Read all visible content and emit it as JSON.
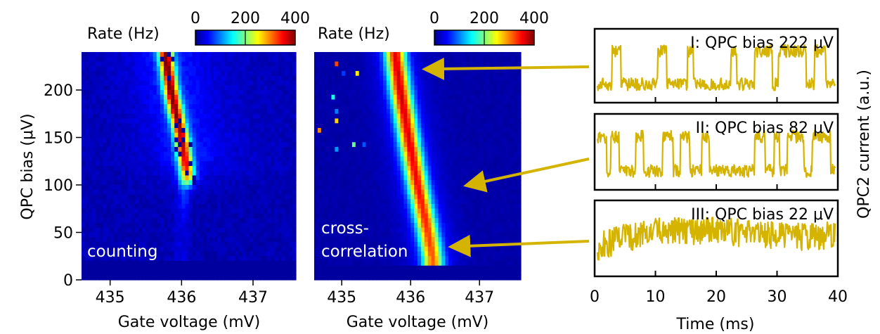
{
  "chart_data": [
    {
      "type": "heatmap",
      "panel_label": "counting",
      "xlabel": "Gate voltage (mV)",
      "ylabel": "QPC bias (μV)",
      "xlim": [
        434.6,
        437.6
      ],
      "ylim": [
        0,
        240
      ],
      "x_ticks": [
        "435",
        "436",
        "437"
      ],
      "y_ticks": [
        "0",
        "50",
        "100",
        "150",
        "200"
      ],
      "colorbar": {
        "label": "Rate (Hz)",
        "range": [
          0,
          400
        ],
        "ticks": [
          "0",
          "200",
          "400"
        ],
        "colormap": "jet"
      },
      "ridge": [
        {
          "bias": 235,
          "gate": 435.78,
          "peak_rate": 360
        },
        {
          "bias": 200,
          "gate": 435.85,
          "peak_rate": 360
        },
        {
          "bias": 150,
          "gate": 436.0,
          "peak_rate": 330
        },
        {
          "bias": 110,
          "gate": 436.08,
          "peak_rate": 300
        },
        {
          "bias": 95,
          "gate": 436.05,
          "peak_rate": 60
        },
        {
          "bias": 60,
          "gate": 436.0,
          "peak_rate": 20
        }
      ]
    },
    {
      "type": "heatmap",
      "panel_label": "cross-\ncorrelation",
      "xlabel": "Gate voltage (mV)",
      "xlim": [
        434.6,
        437.6
      ],
      "ylim": [
        0,
        240
      ],
      "x_ticks": [
        "435",
        "436",
        "437"
      ],
      "colorbar": {
        "label": "Rate (Hz)",
        "range": [
          0,
          400
        ],
        "ticks": [
          "0",
          "200",
          "400"
        ],
        "colormap": "jet"
      },
      "ridge": [
        {
          "bias": 235,
          "gate": 435.78,
          "peak_rate": 330
        },
        {
          "bias": 200,
          "gate": 435.85,
          "peak_rate": 340
        },
        {
          "bias": 150,
          "gate": 435.97,
          "peak_rate": 330
        },
        {
          "bias": 100,
          "gate": 436.1,
          "peak_rate": 320
        },
        {
          "bias": 50,
          "gate": 436.25,
          "peak_rate": 300
        },
        {
          "bias": 22,
          "gate": 436.32,
          "peak_rate": 280
        }
      ],
      "annotations": [
        {
          "bias": 222,
          "gate": 436.1,
          "trace": "I"
        },
        {
          "bias": 100,
          "gate": 436.7,
          "trace": "II"
        },
        {
          "bias": 35,
          "gate": 436.48,
          "trace": "III"
        }
      ]
    },
    {
      "type": "line",
      "xlabel": "Time (ms)",
      "ylabel": "QPC2 current (a.u.)",
      "xlim": [
        0,
        40
      ],
      "x_ticks": [
        "0",
        "10",
        "20",
        "30",
        "40"
      ],
      "line_color": "#D4B400",
      "arrow_color": "#D4B400",
      "traces": [
        {
          "label": "I: QPC bias 222 μV",
          "segments": [
            [
              0,
              0
            ],
            [
              2.5,
              1
            ],
            [
              4,
              0
            ],
            [
              10.2,
              1
            ],
            [
              11.7,
              0
            ],
            [
              15.2,
              1
            ],
            [
              16.2,
              0
            ],
            [
              22.5,
              1
            ],
            [
              23.5,
              0
            ],
            [
              26.5,
              1
            ],
            [
              29.5,
              0
            ],
            [
              30.5,
              1
            ],
            [
              35.2,
              0
            ],
            [
              36.6,
              1
            ],
            [
              38.5,
              0
            ]
          ]
        },
        {
          "label": "II: QPC bias 82 μV",
          "segments": [
            [
              0,
              1
            ],
            [
              1.6,
              0
            ],
            [
              2.3,
              1
            ],
            [
              3.6,
              0
            ],
            [
              6.5,
              1
            ],
            [
              7.8,
              0
            ],
            [
              11,
              1
            ],
            [
              12.8,
              0
            ],
            [
              14,
              1
            ],
            [
              15.6,
              0
            ],
            [
              17.6,
              1
            ],
            [
              18.8,
              0
            ],
            [
              26.5,
              1
            ],
            [
              28.3,
              0
            ],
            [
              29.8,
              1
            ],
            [
              30.7,
              0
            ],
            [
              32,
              1
            ],
            [
              34.8,
              0
            ],
            [
              36.2,
              1
            ],
            [
              39.3,
              0
            ]
          ]
        },
        {
          "label": "III: QPC bias 22 μV",
          "segments": [
            [
              0,
              0.3
            ],
            [
              4,
              0.55
            ],
            [
              10,
              0.75
            ],
            [
              18,
              0.8
            ],
            [
              25,
              0.7
            ],
            [
              30,
              0.65
            ],
            [
              35,
              0.6
            ],
            [
              40,
              0.65
            ]
          ]
        }
      ]
    }
  ]
}
